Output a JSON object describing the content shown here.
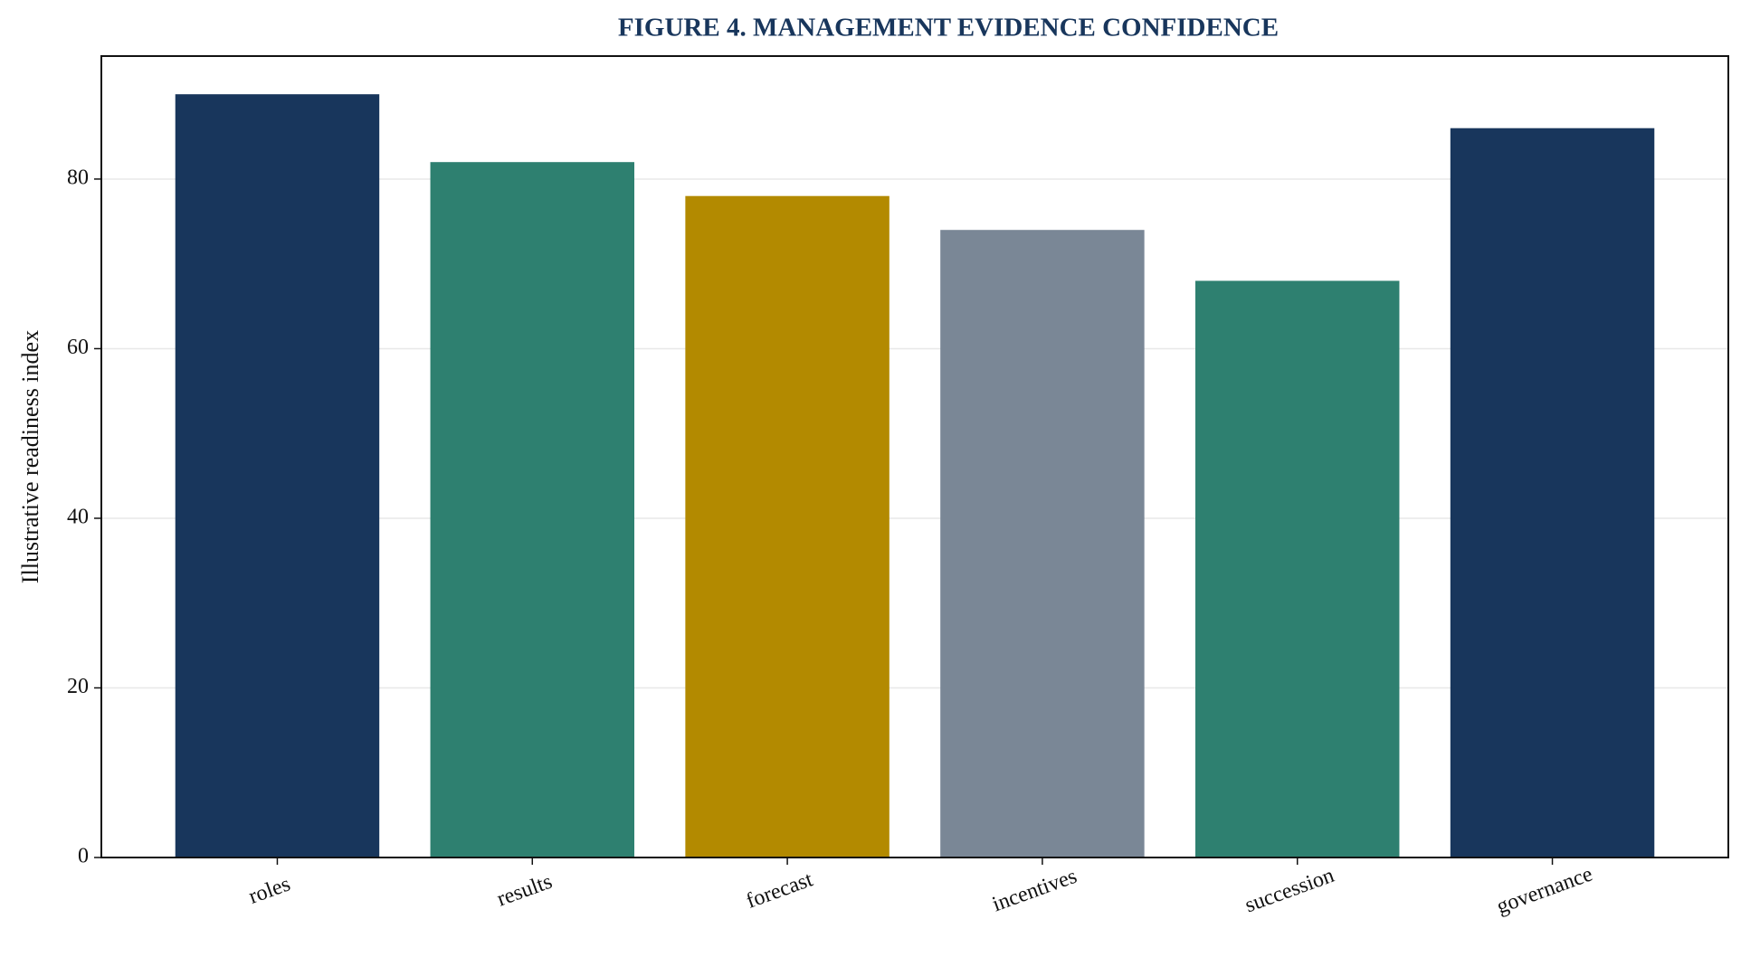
{
  "chart_data": {
    "type": "bar",
    "title": "FIGURE 4. MANAGEMENT EVIDENCE CONFIDENCE",
    "y_label": "Illustrative readiness index",
    "categories": [
      "roles",
      "results",
      "forecast",
      "incentives",
      "succession",
      "governance"
    ],
    "values": [
      90,
      82,
      78,
      74,
      68,
      86
    ],
    "colors": [
      "#18365c",
      "#2e8070",
      "#b38a00",
      "#7a8796",
      "#2e8070",
      "#18365c"
    ],
    "ylim": [
      0,
      94.5
    ],
    "yticks": [
      0,
      20,
      40,
      60,
      80
    ],
    "grid": true
  }
}
